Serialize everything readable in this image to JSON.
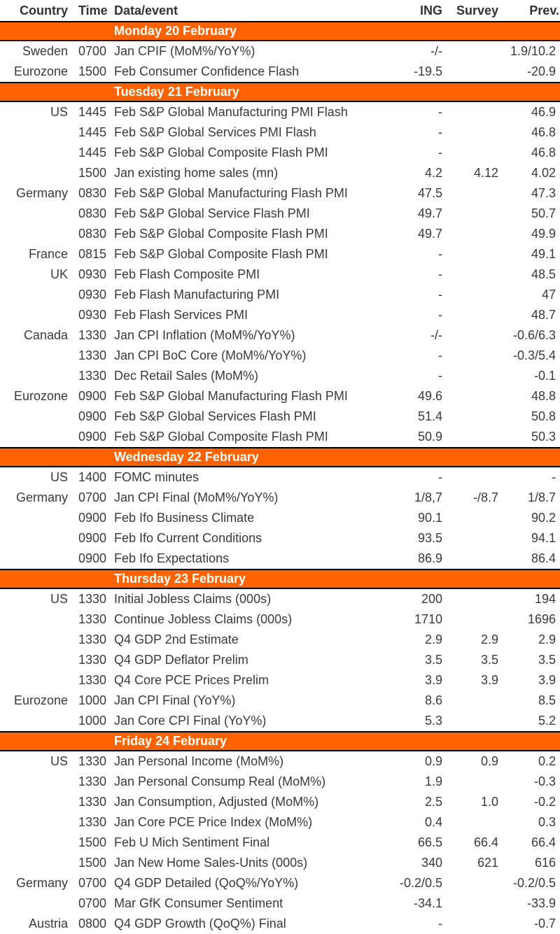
{
  "chart_data": {
    "type": "table",
    "columns": [
      "Country",
      "Time",
      "Data/event",
      "ING",
      "Survey",
      "Prev."
    ],
    "sections": [
      {
        "title": "Monday 20 February",
        "rows": [
          {
            "country": "Sweden",
            "time": "0700",
            "event": "Jan CPIF (MoM%/YoY%)",
            "ing": "-/-",
            "survey": "",
            "prev": "1.9/10.2"
          },
          {
            "country": "Eurozone",
            "time": "1500",
            "event": "Feb Consumer Confidence Flash",
            "ing": "-19.5",
            "survey": "",
            "prev": "-20.9"
          }
        ]
      },
      {
        "title": "Tuesday 21 February",
        "rows": [
          {
            "country": "US",
            "time": "1445",
            "event": "Feb S&P Global Manufacturing PMI Flash",
            "ing": "-",
            "survey": "",
            "prev": "46.9"
          },
          {
            "country": "",
            "time": "1445",
            "event": "Feb S&P Global Services PMI Flash",
            "ing": "-",
            "survey": "",
            "prev": "46.8"
          },
          {
            "country": "",
            "time": "1445",
            "event": "Feb S&P Global Composite Flash PMI",
            "ing": "-",
            "survey": "",
            "prev": "46.8"
          },
          {
            "country": "",
            "time": "1500",
            "event": "Jan existing home sales (mn)",
            "ing": "4.2",
            "survey": "4.12",
            "prev": "4.02"
          },
          {
            "country": "Germany",
            "time": "0830",
            "event": "Feb S&P Global Manufacturing Flash PMI",
            "ing": "47.5",
            "survey": "",
            "prev": "47.3"
          },
          {
            "country": "",
            "time": "0830",
            "event": "Feb S&P Global Service Flash PMI",
            "ing": "49.7",
            "survey": "",
            "prev": "50.7"
          },
          {
            "country": "",
            "time": "0830",
            "event": "Feb S&P Global Composite Flash PMI",
            "ing": "49.7",
            "survey": "",
            "prev": "49.9"
          },
          {
            "country": "France",
            "time": "0815",
            "event": "Feb S&P Global Composite Flash PMI",
            "ing": "-",
            "survey": "",
            "prev": "49.1"
          },
          {
            "country": "UK",
            "time": "0930",
            "event": "Feb Flash Composite PMI",
            "ing": "-",
            "survey": "",
            "prev": "48.5"
          },
          {
            "country": "",
            "time": "0930",
            "event": "Feb Flash Manufacturing PMI",
            "ing": "-",
            "survey": "",
            "prev": "47"
          },
          {
            "country": "",
            "time": "0930",
            "event": "Feb Flash Services PMI",
            "ing": "-",
            "survey": "",
            "prev": "48.7"
          },
          {
            "country": "Canada",
            "time": "1330",
            "event": "Jan CPI Inflation (MoM%/YoY%)",
            "ing": "-/-",
            "survey": "",
            "prev": "-0.6/6.3"
          },
          {
            "country": "",
            "time": "1330",
            "event": "Jan CPI BoC Core (MoM%/YoY%)",
            "ing": "-",
            "survey": "",
            "prev": "-0.3/5.4"
          },
          {
            "country": "",
            "time": "1330",
            "event": "Dec Retail Sales (MoM%)",
            "ing": "-",
            "survey": "",
            "prev": "-0.1"
          },
          {
            "country": "Eurozone",
            "time": "0900",
            "event": "Feb S&P Global Manufacturing Flash PMI",
            "ing": "49.6",
            "survey": "",
            "prev": "48.8"
          },
          {
            "country": "",
            "time": "0900",
            "event": "Feb S&P Global Services Flash PMI",
            "ing": "51.4",
            "survey": "",
            "prev": "50.8"
          },
          {
            "country": "",
            "time": "0900",
            "event": "Feb S&P Global Composite Flash PMI",
            "ing": "50.9",
            "survey": "",
            "prev": "50.3"
          }
        ]
      },
      {
        "title": "Wednesday 22 February",
        "rows": [
          {
            "country": "US",
            "time": "1400",
            "event": "FOMC minutes",
            "ing": "-",
            "survey": "",
            "prev": "-"
          },
          {
            "country": "Germany",
            "time": "0700",
            "event": "Jan CPI Final (MoM%/YoY%)",
            "ing": "1/8,7",
            "survey": "-/8.7",
            "prev": "1/8.7"
          },
          {
            "country": "",
            "time": "0900",
            "event": "Feb Ifo Business Climate",
            "ing": "90.1",
            "survey": "",
            "prev": "90.2"
          },
          {
            "country": "",
            "time": "0900",
            "event": "Feb Ifo Current Conditions",
            "ing": "93.5",
            "survey": "",
            "prev": "94.1"
          },
          {
            "country": "",
            "time": "0900",
            "event": "Feb Ifo Expectations",
            "ing": "86.9",
            "survey": "",
            "prev": "86.4"
          }
        ]
      },
      {
        "title": "Thursday 23 February",
        "rows": [
          {
            "country": "US",
            "time": "1330",
            "event": "Initial Jobless Claims (000s)",
            "ing": "200",
            "survey": "",
            "prev": "194"
          },
          {
            "country": "",
            "time": "1330",
            "event": "Continue Jobless Claims (000s)",
            "ing": "1710",
            "survey": "",
            "prev": "1696"
          },
          {
            "country": "",
            "time": "1330",
            "event": "Q4 GDP 2nd Estimate",
            "ing": "2.9",
            "survey": "2.9",
            "prev": "2.9"
          },
          {
            "country": "",
            "time": "1330",
            "event": "Q4 GDP Deflator Prelim",
            "ing": "3.5",
            "survey": "3.5",
            "prev": "3.5"
          },
          {
            "country": "",
            "time": "1330",
            "event": "Q4 Core PCE Prices Prelim",
            "ing": "3.9",
            "survey": "3.9",
            "prev": "3.9"
          },
          {
            "country": "Eurozone",
            "time": "1000",
            "event": "Jan CPI Final (YoY%)",
            "ing": "8.6",
            "survey": "",
            "prev": "8.5"
          },
          {
            "country": "",
            "time": "1000",
            "event": "Jan Core CPI Final (YoY%)",
            "ing": "5.3",
            "survey": "",
            "prev": "5.2"
          }
        ]
      },
      {
        "title": "Friday 24 February",
        "rows": [
          {
            "country": "US",
            "time": "1330",
            "event": "Jan Personal Income (MoM%)",
            "ing": "0.9",
            "survey": "0.9",
            "prev": "0.2"
          },
          {
            "country": "",
            "time": "1330",
            "event": "Jan Personal Consump Real (MoM%)",
            "ing": "1.9",
            "survey": "",
            "prev": "-0.3"
          },
          {
            "country": "",
            "time": "1330",
            "event": "Jan Consumption, Adjusted (MoM%)",
            "ing": "2.5",
            "survey": "1.0",
            "prev": "-0.2"
          },
          {
            "country": "",
            "time": "1330",
            "event": "Jan Core PCE Price Index (MoM%)",
            "ing": "0.4",
            "survey": "",
            "prev": "0.3"
          },
          {
            "country": "",
            "time": "1500",
            "event": "Feb U Mich Sentiment Final",
            "ing": "66.5",
            "survey": "66.4",
            "prev": "66.4"
          },
          {
            "country": "",
            "time": "1500",
            "event": "Jan New Home Sales-Units (000s)",
            "ing": "340",
            "survey": "621",
            "prev": "616"
          },
          {
            "country": "Germany",
            "time": "0700",
            "event": "Q4 GDP Detailed (QoQ%/YoY%)",
            "ing": "-0.2/0.5",
            "survey": "",
            "prev": "-0.2/0.5"
          },
          {
            "country": "",
            "time": "0700",
            "event": "Mar GfK Consumer Sentiment",
            "ing": "-34.1",
            "survey": "",
            "prev": "-33.9"
          },
          {
            "country": "Austria",
            "time": "0800",
            "event": "Q4 GDP Growth (QoQ%) Final",
            "ing": "-",
            "survey": "",
            "prev": "-0.7"
          }
        ]
      }
    ]
  },
  "colors": {
    "accent_orange": "#FF6200",
    "section_text": "#FFFFFF",
    "body_text": "#3A3A3A",
    "divider": "#000000",
    "background": "#FFFFFF"
  }
}
